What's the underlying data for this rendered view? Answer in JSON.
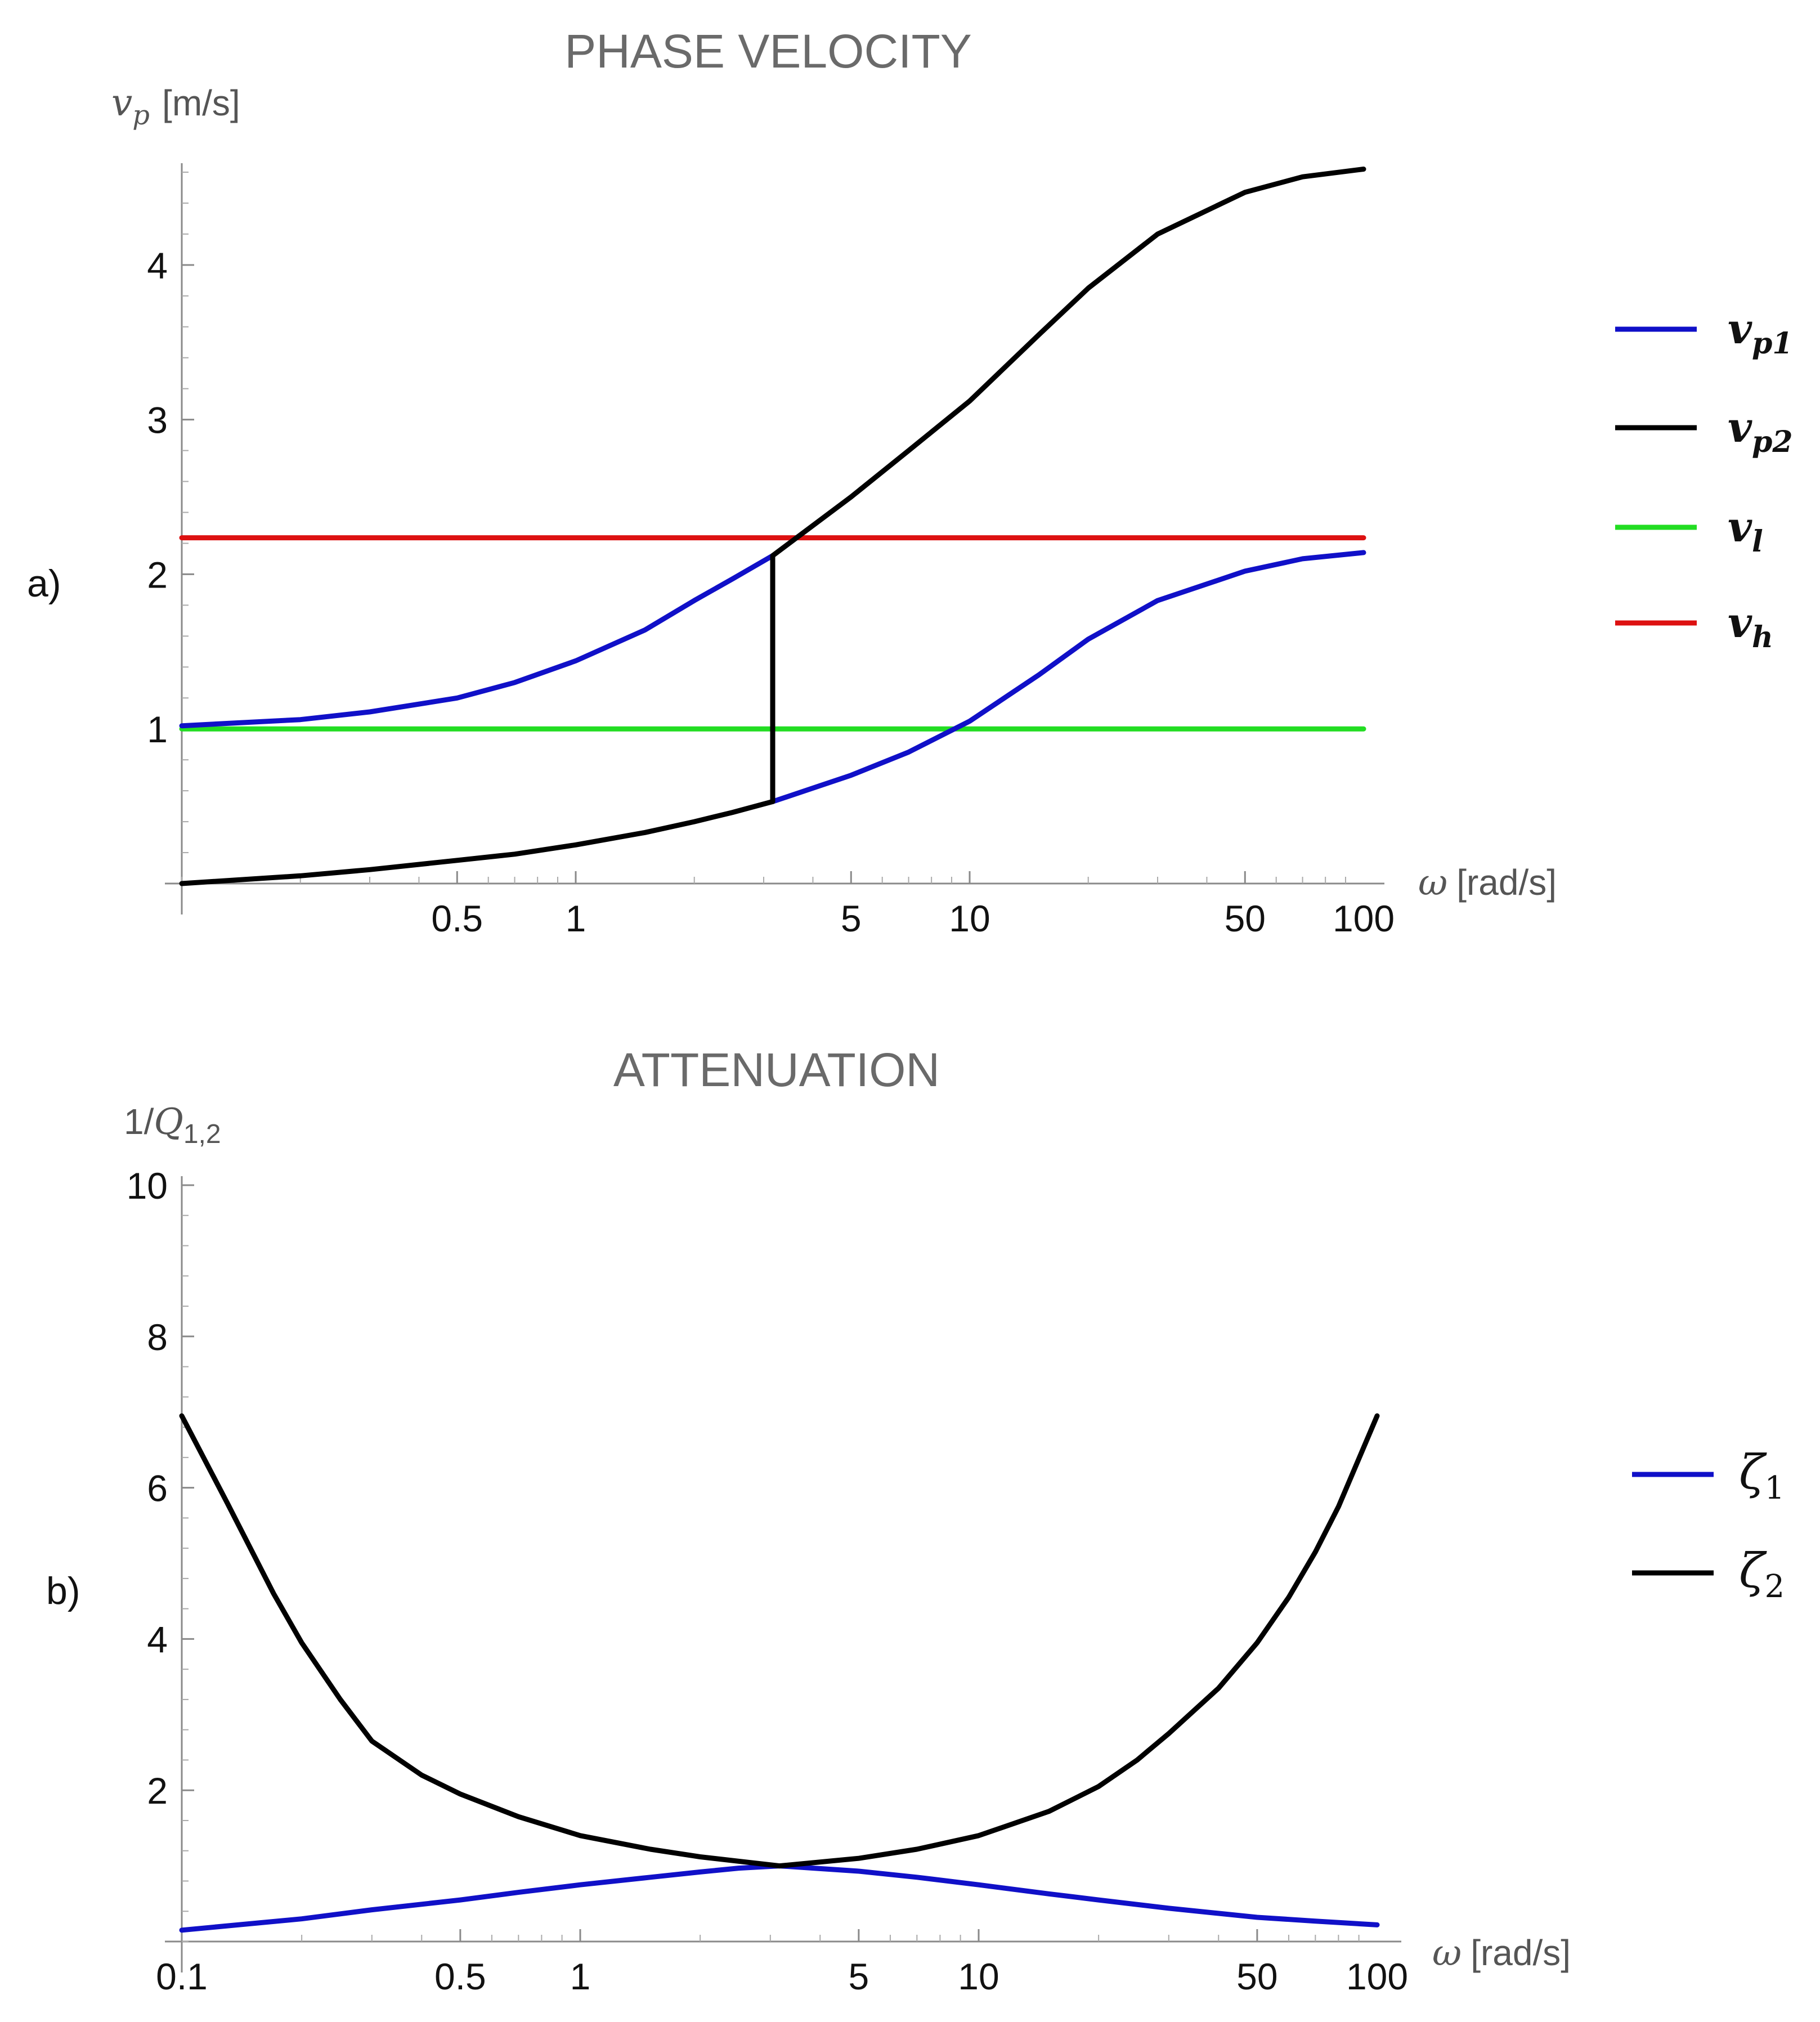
{
  "colors": {
    "blue": "#1010c8",
    "black": "#000000",
    "green": "#22dd22",
    "red": "#dd1111",
    "axis": "#8a8a8a"
  },
  "chart_data": [
    {
      "panel_label": "a)",
      "type": "line",
      "title": "PHASE VELOCITY",
      "ylabel": {
        "symbol": "v",
        "sub": "p",
        "unit": "[m/s]"
      },
      "xlabel": {
        "symbol": "ω",
        "unit": "[rad/s]"
      },
      "xscale": "log",
      "xlim": [
        0.1,
        100
      ],
      "ylim": [
        0,
        4.8
      ],
      "yticks": [
        1,
        2,
        3,
        4
      ],
      "xticks": [
        0.5,
        1,
        5,
        10,
        50,
        100
      ],
      "xtick_labels": [
        "0.5",
        "1",
        "5",
        "10",
        "50",
        "100"
      ],
      "legend": [
        {
          "symbol": "v",
          "sub": "p1",
          "color": "#1010c8"
        },
        {
          "symbol": "v",
          "sub": "p2",
          "color": "#000000"
        },
        {
          "symbol": "v",
          "sub": "l",
          "color": "#22dd22"
        },
        {
          "symbol": "v",
          "sub": "h",
          "color": "#dd1111"
        }
      ],
      "series": [
        {
          "name": "vl",
          "color": "#22dd22",
          "x": [
            0.1,
            100
          ],
          "y": [
            1.0,
            1.0
          ]
        },
        {
          "name": "vh",
          "color": "#dd1111",
          "x": [
            0.1,
            100
          ],
          "y": [
            2.236,
            2.236
          ]
        },
        {
          "name": "vp1 (upper)",
          "color": "#1010c8",
          "x": [
            0.1,
            0.2,
            0.3,
            0.5,
            0.7,
            1,
            1.5,
            2,
            2.5,
            3.1623
          ],
          "y": [
            1.02,
            1.06,
            1.11,
            1.2,
            1.3,
            1.44,
            1.64,
            1.83,
            1.97,
            2.12
          ]
        },
        {
          "name": "vp1 (lower)",
          "color": "#1010c8",
          "x": [
            3.1623,
            5,
            7,
            10,
            15,
            20,
            30,
            50,
            70,
            100
          ],
          "y": [
            0.53,
            0.7,
            0.85,
            1.05,
            1.35,
            1.58,
            1.83,
            2.02,
            2.1,
            2.14
          ]
        },
        {
          "name": "vp2 (lower)",
          "color": "#000000",
          "x": [
            0.1,
            0.2,
            0.3,
            0.5,
            0.7,
            1,
            1.5,
            2,
            2.5,
            3.1623
          ],
          "y": [
            0.0,
            0.05,
            0.09,
            0.15,
            0.19,
            0.25,
            0.33,
            0.4,
            0.46,
            0.53
          ]
        },
        {
          "name": "vp2 (jump)",
          "color": "#000000",
          "x": [
            3.1623,
            3.1623
          ],
          "y": [
            0.53,
            2.12
          ]
        },
        {
          "name": "vp2 (upper)",
          "color": "#000000",
          "x": [
            3.1623,
            5,
            7,
            10,
            15,
            20,
            30,
            50,
            70,
            100
          ],
          "y": [
            2.12,
            2.5,
            2.8,
            3.12,
            3.55,
            3.85,
            4.2,
            4.47,
            4.57,
            4.62
          ]
        }
      ]
    },
    {
      "panel_label": "b)",
      "type": "line",
      "title": "ATTENUATION",
      "ylabel": {
        "text": "1/",
        "symbol": "Q",
        "sub": "1,2"
      },
      "xlabel": {
        "symbol": "ω",
        "unit": "[rad/s]"
      },
      "xscale": "log",
      "xlim": [
        0.1,
        100
      ],
      "ylim": [
        0,
        10
      ],
      "yticks": [
        2,
        4,
        6,
        8,
        10
      ],
      "xticks": [
        0.1,
        0.5,
        1,
        5,
        10,
        50,
        100
      ],
      "xtick_labels": [
        "0.1",
        "0.5",
        "1",
        "5",
        "10",
        "50",
        "100"
      ],
      "legend": [
        {
          "symbol": "ζ",
          "sub": "1",
          "color": "#1010c8"
        },
        {
          "symbol": "ζ",
          "sub": "2",
          "color": "#000000"
        }
      ],
      "series": [
        {
          "name": "ζ1",
          "color": "#1010c8",
          "x": [
            0.1,
            0.2,
            0.3,
            0.5,
            0.7,
            1,
            1.5,
            2,
            2.5,
            3.1623,
            5,
            7,
            10,
            15,
            20,
            30,
            50,
            70,
            100
          ],
          "y": [
            0.15,
            0.3,
            0.42,
            0.55,
            0.65,
            0.75,
            0.85,
            0.92,
            0.97,
            1.0,
            0.93,
            0.85,
            0.75,
            0.63,
            0.55,
            0.44,
            0.32,
            0.27,
            0.22
          ]
        },
        {
          "name": "ζ2",
          "color": "#000000",
          "x": [
            0.1,
            0.13,
            0.17,
            0.2,
            0.25,
            0.3,
            0.4,
            0.5,
            0.7,
            1,
            1.5,
            2,
            3.1623,
            5,
            7,
            10,
            15,
            20,
            25,
            30,
            40,
            50,
            60,
            70,
            80,
            100
          ],
          "y": [
            6.95,
            5.8,
            4.6,
            3.95,
            3.2,
            2.65,
            2.2,
            1.95,
            1.65,
            1.4,
            1.22,
            1.12,
            1.0,
            1.1,
            1.22,
            1.4,
            1.72,
            2.05,
            2.4,
            2.75,
            3.35,
            3.95,
            4.55,
            5.15,
            5.75,
            6.95
          ]
        }
      ]
    }
  ]
}
